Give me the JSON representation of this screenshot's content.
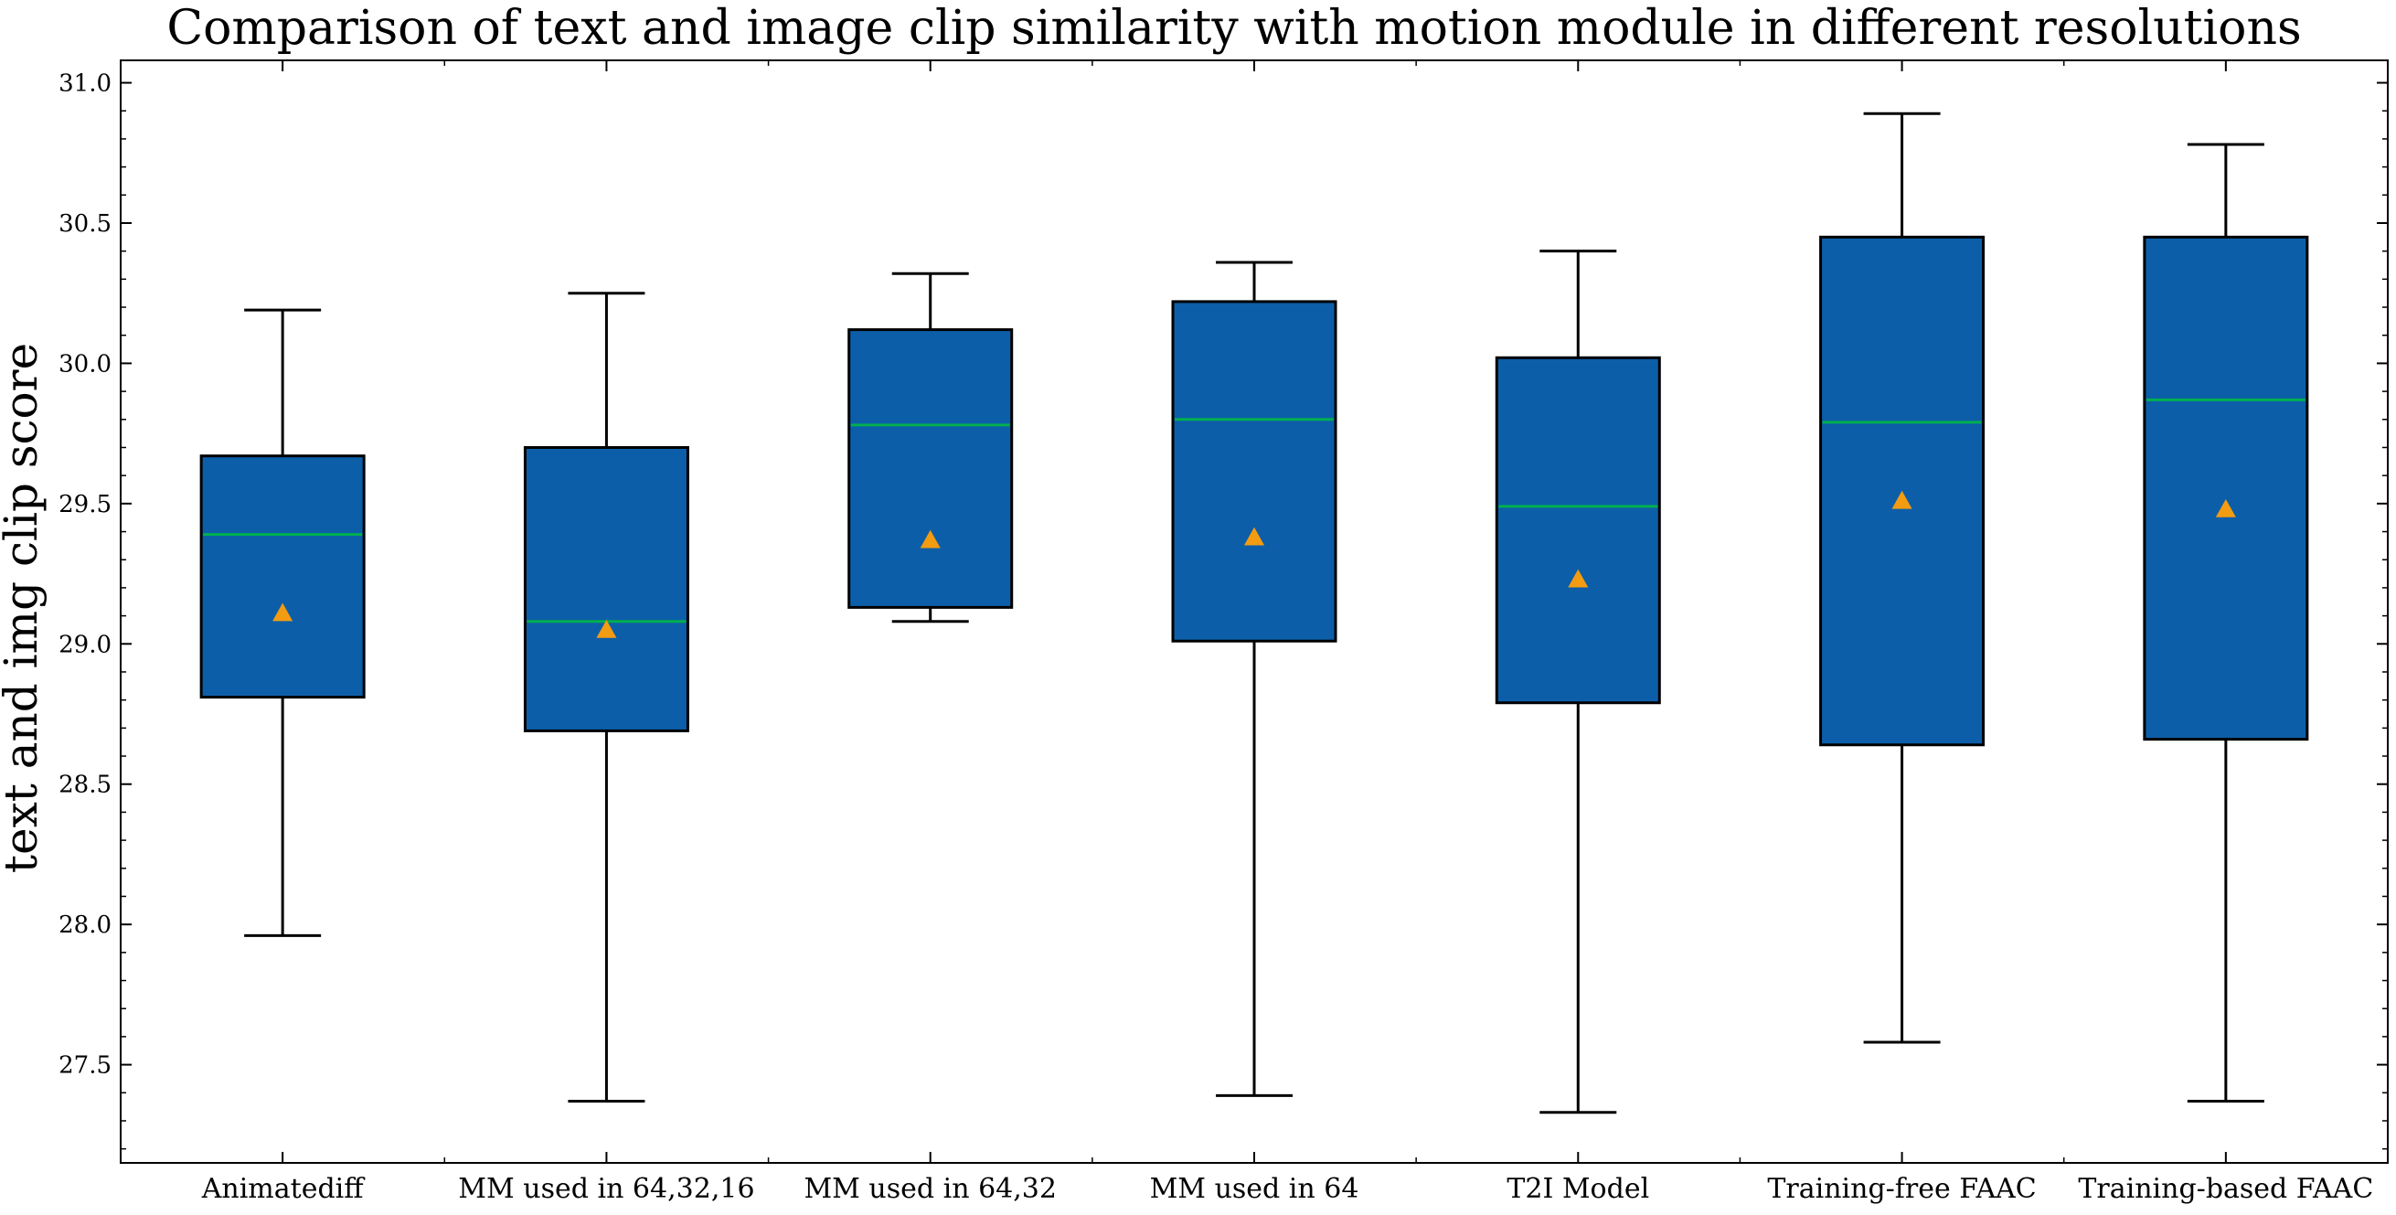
{
  "chart_data": {
    "type": "box",
    "title": "Comparison of text and image clip similarity with motion module in different resolutions",
    "xlabel": "",
    "ylabel": "text and img clip score",
    "ylim": [
      27.15,
      31.08
    ],
    "yticks": [
      27.5,
      28.0,
      28.5,
      29.0,
      29.5,
      30.0,
      30.5,
      31.0
    ],
    "ytick_labels": [
      "27.5",
      "28.0",
      "28.5",
      "29.0",
      "29.5",
      "30.0",
      "30.5",
      "31.0"
    ],
    "grid": false,
    "categories": [
      "Animatediff",
      "MM used in 64,32,16",
      "MM used in 64,32",
      "MM used in 64",
      "T2I Model",
      "Training-free FAAC",
      "Training-based FAAC"
    ],
    "boxes": [
      {
        "whisker_low": 27.96,
        "q1": 28.81,
        "median": 29.39,
        "q3": 29.67,
        "whisker_high": 30.19,
        "mean": 29.11
      },
      {
        "whisker_low": 27.37,
        "q1": 28.69,
        "median": 29.08,
        "q3": 29.7,
        "whisker_high": 30.25,
        "mean": 29.05
      },
      {
        "whisker_low": 29.08,
        "q1": 29.13,
        "median": 29.78,
        "q3": 30.12,
        "whisker_high": 30.32,
        "mean": 29.37
      },
      {
        "whisker_low": 27.39,
        "q1": 29.01,
        "median": 29.8,
        "q3": 30.22,
        "whisker_high": 30.36,
        "mean": 29.38
      },
      {
        "whisker_low": 27.33,
        "q1": 28.79,
        "median": 29.49,
        "q3": 30.02,
        "whisker_high": 30.4,
        "mean": 29.23
      },
      {
        "whisker_low": 27.58,
        "q1": 28.64,
        "median": 29.79,
        "q3": 30.45,
        "whisker_high": 30.89,
        "mean": 29.51
      },
      {
        "whisker_low": 27.37,
        "q1": 28.66,
        "median": 29.87,
        "q3": 30.45,
        "whisker_high": 30.78,
        "mean": 29.48
      }
    ],
    "colors": {
      "box_fill": "#0d5ea8",
      "median_line": "#00b050",
      "mean_marker": "#f39c12",
      "lines": "#000000"
    }
  }
}
